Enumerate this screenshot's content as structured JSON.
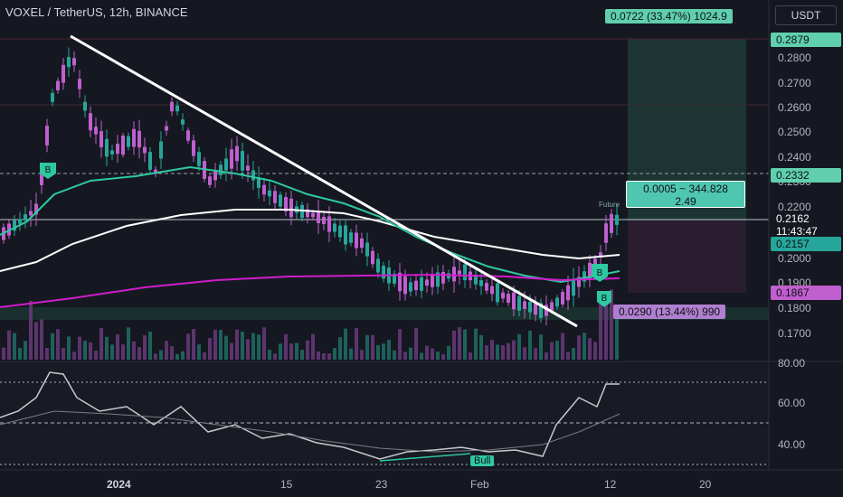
{
  "header": {
    "title": "VOXEL / TetherUS, 12h, BINANCE",
    "currency_button": "USDT"
  },
  "price_axis": {
    "ticks": [
      "0.2800",
      "0.2700",
      "0.2600",
      "0.2500",
      "0.2400",
      "0.2300",
      "0.2200",
      "0.2000",
      "0.1900",
      "0.1800",
      "0.1700"
    ],
    "badges": [
      {
        "text": "0.2879",
        "color": "#5fcfae"
      },
      {
        "text": "0.2332",
        "color": "#5fcfae"
      },
      {
        "text": "0.2162",
        "color": "#ffffff"
      },
      {
        "text": "11:43:47",
        "color": "#ffffff"
      },
      {
        "text": "0.2157",
        "color": "#26a69a"
      },
      {
        "text": "0.1867",
        "color": "#c05fcf"
      }
    ]
  },
  "rsi_axis": {
    "ticks": [
      "80.00",
      "60.00",
      "40.00"
    ]
  },
  "time_axis": {
    "ticks": [
      "2024",
      "15",
      "23",
      "Feb",
      "12",
      "20"
    ]
  },
  "annotations": {
    "target_box": "0.0722 (33.47%) 1024.9",
    "ratio_box_line1": "0.0005 ~ 344.828",
    "ratio_box_line2": "2.49",
    "stop_box": "0.0290 (13.44%) 990",
    "futures_label": "Future",
    "buy_signal": "B",
    "bull_label": "Bull"
  },
  "colors": {
    "up": "#26a69a",
    "down": "#c05fcf",
    "ema_green": "#2ec8a0",
    "ema_white": "#ffffff",
    "ema_magenta": "#d01ccc",
    "bg": "#151820"
  }
}
